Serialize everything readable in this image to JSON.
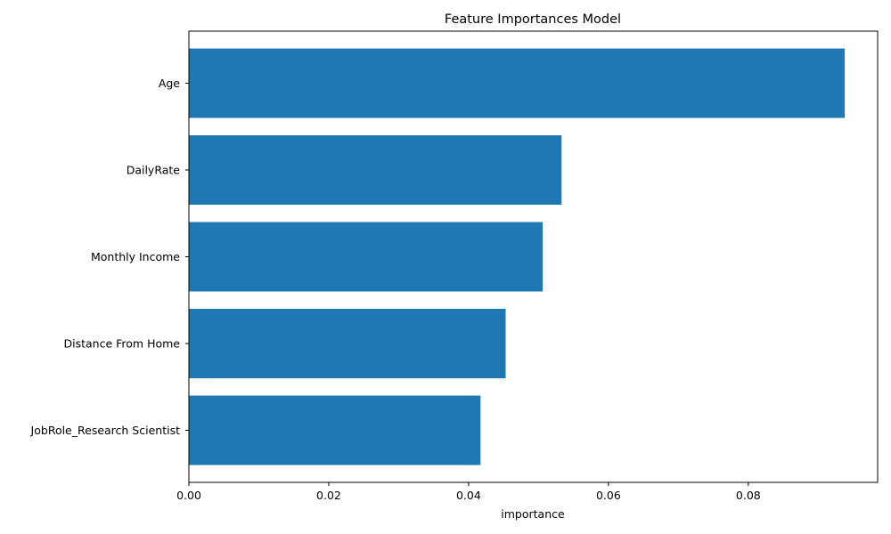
{
  "chart_data": {
    "type": "bar",
    "orientation": "horizontal",
    "title": "Feature Importances Model",
    "xlabel": "importance",
    "ylabel": "",
    "categories": [
      "Age",
      "DailyRate",
      "Monthly Income",
      "Distance From Home",
      "JobRole_Research Scientist"
    ],
    "values": [
      0.0938,
      0.0533,
      0.0506,
      0.0453,
      0.0417
    ],
    "xlim": [
      0,
      0.0985
    ],
    "xticks": [
      0,
      0.02,
      0.04,
      0.06,
      0.08
    ],
    "xtick_labels": [
      "0.00",
      "0.02",
      "0.04",
      "0.06",
      "0.08"
    ],
    "bar_color": "#1f77b4",
    "grid": false,
    "legend": "none"
  }
}
